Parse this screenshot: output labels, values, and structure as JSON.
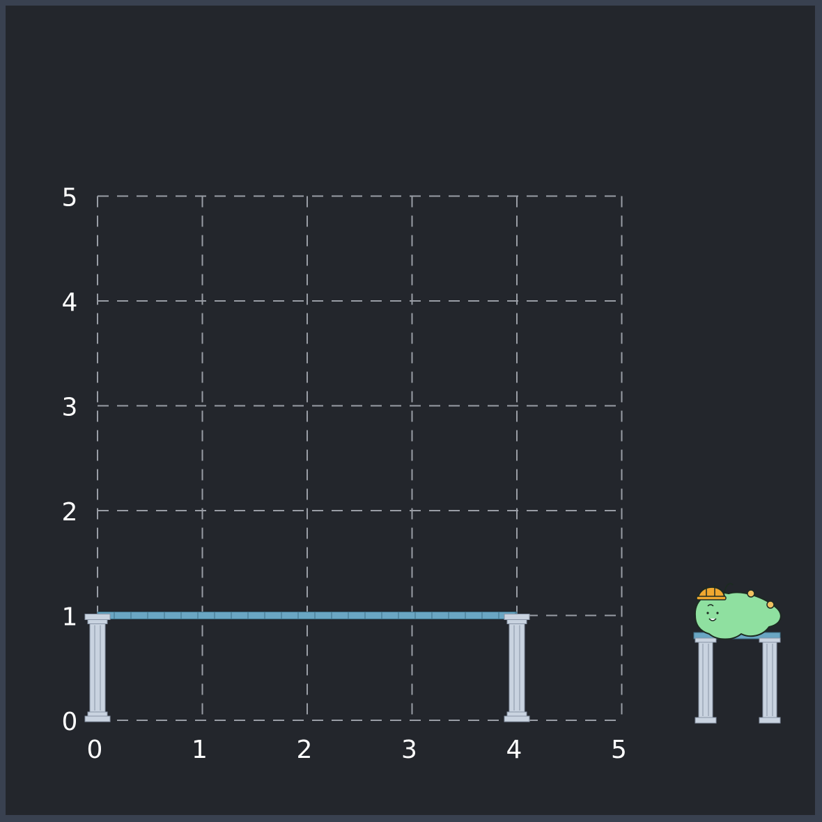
{
  "grid": {
    "x_ticks": [
      "0",
      "1",
      "2",
      "3",
      "4",
      "5"
    ],
    "y_ticks": [
      "0",
      "1",
      "2",
      "3",
      "4",
      "5"
    ],
    "x_range": [
      0,
      5
    ],
    "y_range": [
      0,
      5
    ],
    "grid_lines": "dashed",
    "colors": {
      "background": "#23262c",
      "grid": "#9a9ea6",
      "tick_text": "#ffffff"
    }
  },
  "bridge": {
    "deck_from": [
      0,
      1
    ],
    "deck_to": [
      4,
      1
    ],
    "pillars_at_x": [
      0,
      4
    ],
    "colors": {
      "deck": "#6aa6c3",
      "pillar": "#c9d3e0"
    }
  },
  "character": {
    "icon": "green-blob-with-hardhat-icon",
    "colors": {
      "body": "#8fe0a0",
      "hat": "#f0a830"
    }
  }
}
